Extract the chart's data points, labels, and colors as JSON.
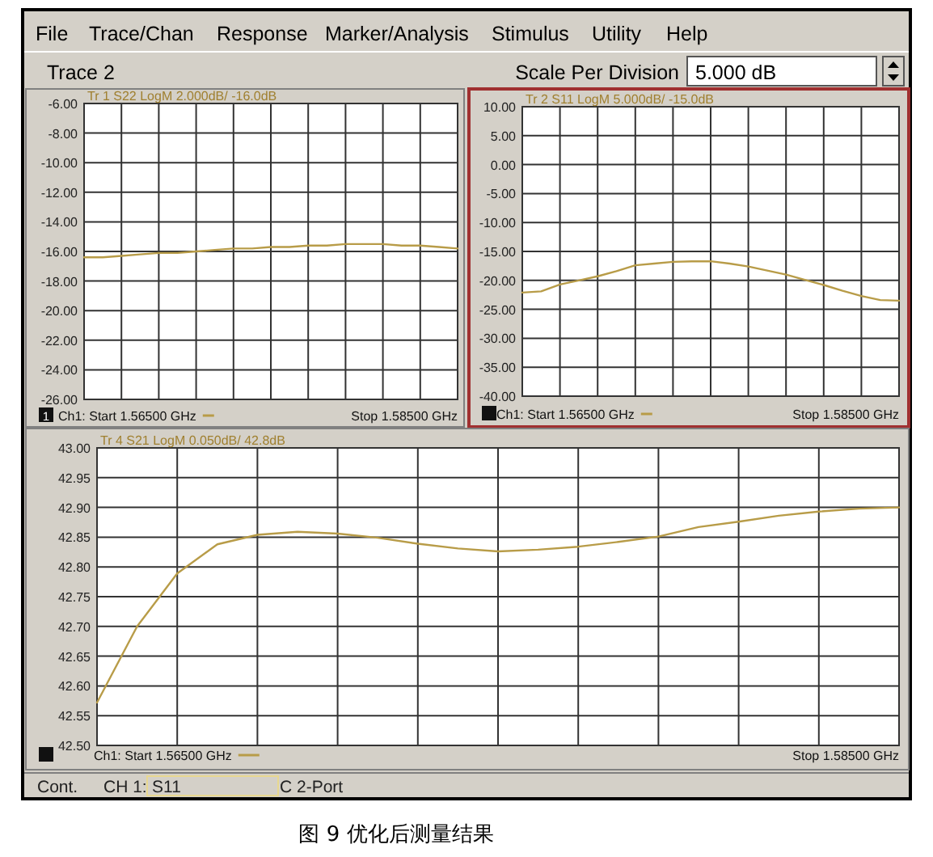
{
  "chart_data": [
    {
      "type": "other",
      "annotations": [
        "File",
        "Trace/Chan",
        "Response",
        "Marker/Analysis",
        "Stimulus",
        "Utility",
        "Help",
        "Trace 2",
        "Scale Per Division",
        "5.000 dB"
      ]
    },
    {
      "type": "line",
      "title": "Tr 1  S22 LogM 2.000dB/ -16.0dB",
      "tick_labels": "y",
      "grid": true,
      "marker": "none",
      "line_style": "solid",
      "categories": [
        null,
        null,
        null,
        null,
        null,
        null,
        null,
        null,
        null,
        null,
        null,
        null,
        null,
        null,
        null,
        null,
        null,
        null,
        null,
        null,
        null
      ],
      "ylim": [
        -26,
        -6
      ],
      "yticks": [
        {
          "value": -6,
          "label": "-6.00"
        },
        {
          "value": -8,
          "label": "-8.00"
        },
        {
          "value": -10,
          "label": "-10.00"
        },
        {
          "value": -12,
          "label": "-12.00"
        },
        {
          "value": -14,
          "label": "-14.00"
        },
        {
          "value": -16,
          "label": "-16.00"
        },
        {
          "value": -18,
          "label": "-18.00"
        },
        {
          "value": -20,
          "label": "-20.00"
        },
        {
          "value": -22,
          "label": "-22.00"
        },
        {
          "value": -24,
          "label": "-24.00"
        },
        {
          "value": -26,
          "label": "-26.00"
        }
      ],
      "series": [
        {
          "color": "#b89c48",
          "values": [
            -16.4,
            -16.4,
            -16.3,
            -16.2,
            -16.1,
            -16.1,
            -16.0,
            -15.9,
            -15.8,
            -15.8,
            -15.7,
            -15.7,
            -15.6,
            -15.6,
            -15.5,
            -15.5,
            -15.5,
            -15.6,
            -15.6,
            -15.7,
            -15.8
          ]
        }
      ],
      "annotations": [
        "Ch1: Start 1.56500 GHz",
        "Stop 1.58500 GHz",
        "1"
      ]
    },
    {
      "type": "line",
      "title": "Tr 2  S11 LogM 5.000dB/ -15.0dB",
      "tick_labels": "y",
      "grid": true,
      "marker": "none",
      "line_style": "solid",
      "categories": [
        null,
        null,
        null,
        null,
        null,
        null,
        null,
        null,
        null,
        null,
        null,
        null,
        null,
        null,
        null,
        null,
        null,
        null,
        null,
        null,
        null
      ],
      "ylim": [
        -40,
        10
      ],
      "yticks": [
        {
          "value": 10,
          "label": "10.00"
        },
        {
          "value": 5,
          "label": "5.00"
        },
        {
          "value": 0,
          "label": "0.00"
        },
        {
          "value": -5,
          "label": "-5.00"
        },
        {
          "value": -10,
          "label": "-10.00"
        },
        {
          "value": -15,
          "label": "-15.00"
        },
        {
          "value": -20,
          "label": "-20.00"
        },
        {
          "value": -25,
          "label": "-25.00"
        },
        {
          "value": -30,
          "label": "-30.00"
        },
        {
          "value": -35,
          "label": "-35.00"
        },
        {
          "value": -40,
          "label": "-40.00"
        }
      ],
      "series": [
        {
          "color": "#b89c48",
          "values": [
            -22.1,
            -21.9,
            -20.7,
            -20.0,
            -19.3,
            -18.4,
            -17.4,
            -17.1,
            -16.8,
            -16.7,
            -16.7,
            -17.1,
            -17.6,
            -18.3,
            -19.0,
            -19.9,
            -20.8,
            -21.8,
            -22.7,
            -23.4,
            -23.5
          ]
        }
      ],
      "annotations": [
        "Ch1: Start 1.56500 GHz",
        "Stop 1.58500 GHz"
      ]
    },
    {
      "type": "line",
      "title": "Tr 4  S21 LogM 0.050dB/ 42.8dB",
      "tick_labels": "y",
      "grid": true,
      "marker": "none",
      "line_style": "solid",
      "categories": [
        null,
        null,
        null,
        null,
        null,
        null,
        null,
        null,
        null,
        null,
        null,
        null,
        null,
        null,
        null,
        null,
        null,
        null,
        null,
        null,
        null
      ],
      "ylim": [
        42.5,
        43.0
      ],
      "yticks": [
        {
          "value": 43.0,
          "label": "43.00"
        },
        {
          "value": 42.95,
          "label": "42.95"
        },
        {
          "value": 42.9,
          "label": "42.90"
        },
        {
          "value": 42.85,
          "label": "42.85"
        },
        {
          "value": 42.8,
          "label": "42.80"
        },
        {
          "value": 42.75,
          "label": "42.75"
        },
        {
          "value": 42.7,
          "label": "42.70"
        },
        {
          "value": 42.65,
          "label": "42.65"
        },
        {
          "value": 42.6,
          "label": "42.60"
        },
        {
          "value": 42.55,
          "label": "42.55"
        },
        {
          "value": 42.5,
          "label": "42.50"
        }
      ],
      "series": [
        {
          "color": "#b89c48",
          "values": [
            42.572,
            42.7,
            42.789,
            42.838,
            42.854,
            42.859,
            42.856,
            42.849,
            42.839,
            42.831,
            42.826,
            42.829,
            42.834,
            42.842,
            42.851,
            42.867,
            42.876,
            42.886,
            42.893,
            42.898,
            42.9
          ]
        }
      ],
      "annotations": [
        "Ch1: Start 1.56500 GHz",
        "Stop 1.58500 GHz"
      ]
    },
    {
      "type": "other",
      "annotations": [
        "Cont.",
        "CH 1:",
        "S11",
        "C 2-Port",
        "图 9 优化后测量结果"
      ]
    }
  ]
}
